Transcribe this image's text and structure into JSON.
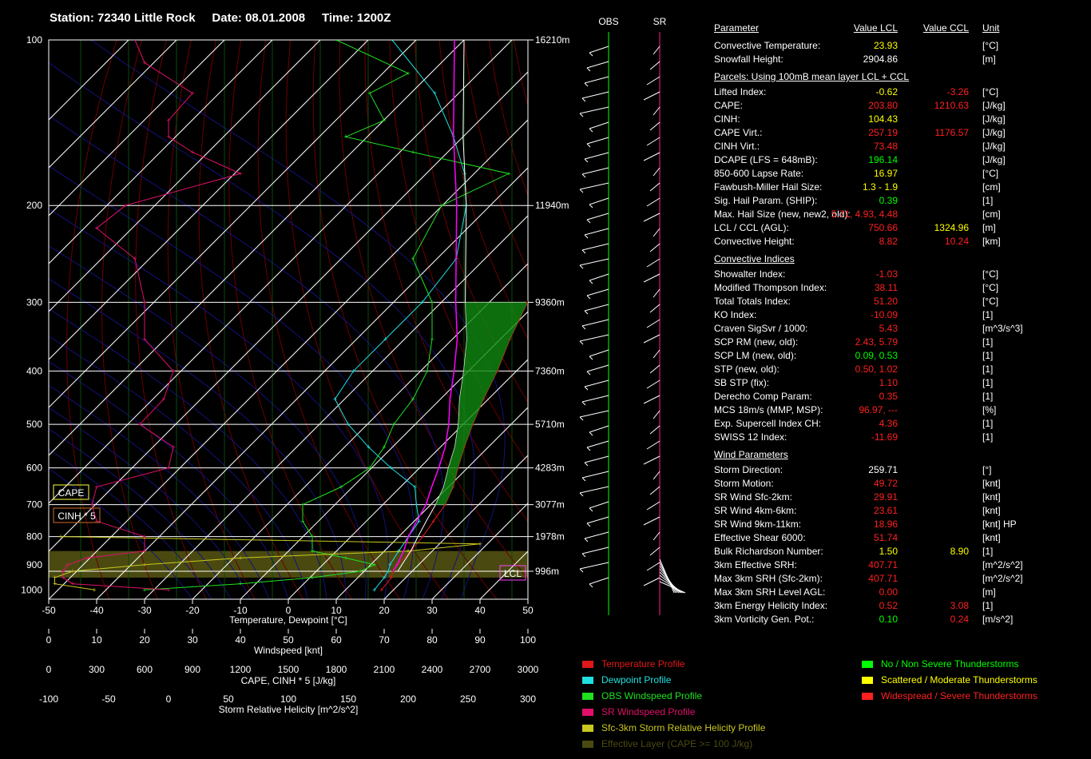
{
  "header": {
    "station": "Station: 72340 Little Rock",
    "date": "Date: 08.01.2008",
    "time": "Time: 1200Z"
  },
  "colors": {
    "temperature": "#e01818",
    "dewpoint": "#20e0e0",
    "obs_wind": "#20e020",
    "sr_wind": "#e0106a",
    "helicity": "#c8c820",
    "effective_layer": "#4a4a10",
    "parcel": "#ff00ff",
    "virtual": "#ffffff",
    "green_index": "#00ff00",
    "yellow_index": "#ffff00",
    "red_index": "#ff2020"
  },
  "chart_data": {
    "type": "skew-t",
    "x_axis": {
      "label": "Temperature, Dewpoint [°C]",
      "range": [
        -50,
        50
      ],
      "ticks": [
        "-50",
        "-40",
        "-30",
        "-20",
        "-10",
        "0",
        "10",
        "20",
        "30",
        "40",
        "50"
      ]
    },
    "y_axis": {
      "scale": "log-pressure",
      "range": [
        100,
        1050
      ],
      "ticks": [
        "100",
        "200",
        "300",
        "400",
        "500",
        "600",
        "700",
        "800",
        "900",
        "1000"
      ]
    },
    "height_labels": [
      {
        "p": 100,
        "label": "16210m"
      },
      {
        "p": 200,
        "label": "11940m"
      },
      {
        "p": 300,
        "label": "9360m"
      },
      {
        "p": 400,
        "label": "7360m"
      },
      {
        "p": 500,
        "label": "5710m"
      },
      {
        "p": 600,
        "label": "4283m"
      },
      {
        "p": 700,
        "label": "3077m"
      },
      {
        "p": 800,
        "label": "1978m"
      },
      {
        "p": 925,
        "label": "996m"
      }
    ],
    "windspeed_axis": {
      "label": "Windspeed [knt]",
      "ticks": [
        "0",
        "10",
        "20",
        "30",
        "40",
        "50",
        "60",
        "70",
        "80",
        "90",
        "100"
      ]
    },
    "cape_axis": {
      "label": "CAPE, CINH * 5 [J/kg]",
      "ticks": [
        "0",
        "300",
        "600",
        "900",
        "1200",
        "1500",
        "1800",
        "2100",
        "2400",
        "2700",
        "3000"
      ]
    },
    "helicity_axis": {
      "label": "Storm Relative Helicity [m^2/s^2]",
      "ticks": [
        "-100",
        "-50",
        "0",
        "50",
        "100",
        "150",
        "200",
        "250",
        "300"
      ]
    },
    "box_labels": {
      "cape": "CAPE",
      "cinh": "CINH * 5",
      "lcl": "LCL"
    },
    "temperature": [
      [
        1000,
        17.5
      ],
      [
        950,
        17
      ],
      [
        925,
        16
      ],
      [
        900,
        15.5
      ],
      [
        850,
        15.5
      ],
      [
        800,
        15
      ],
      [
        750,
        14
      ],
      [
        700,
        13
      ],
      [
        650,
        11
      ],
      [
        600,
        8
      ],
      [
        550,
        5
      ],
      [
        500,
        2
      ],
      [
        450,
        -1
      ],
      [
        400,
        -4
      ],
      [
        350,
        -8
      ],
      [
        300,
        -12
      ],
      [
        250,
        -17
      ],
      [
        200,
        -23
      ],
      [
        175,
        -28
      ],
      [
        150,
        -34
      ],
      [
        125,
        -41
      ],
      [
        100,
        -47
      ]
    ],
    "dewpoint": [
      [
        1000,
        16
      ],
      [
        950,
        15.5
      ],
      [
        925,
        15
      ],
      [
        900,
        14
      ],
      [
        850,
        13
      ],
      [
        800,
        12
      ],
      [
        750,
        11
      ],
      [
        700,
        7
      ],
      [
        650,
        3
      ],
      [
        600,
        -6
      ],
      [
        550,
        -15
      ],
      [
        500,
        -24
      ],
      [
        450,
        -32
      ],
      [
        400,
        -34
      ],
      [
        350,
        -34
      ],
      [
        300,
        -34
      ],
      [
        250,
        -36
      ],
      [
        200,
        -45
      ],
      [
        175,
        -52
      ],
      [
        150,
        -62
      ],
      [
        125,
        -75
      ],
      [
        100,
        -95
      ]
    ],
    "parcel": [
      [
        925,
        16
      ],
      [
        900,
        15.5
      ],
      [
        850,
        14
      ],
      [
        800,
        12
      ],
      [
        750,
        10.5
      ],
      [
        700,
        9
      ],
      [
        650,
        6.5
      ],
      [
        600,
        4
      ],
      [
        550,
        1
      ],
      [
        500,
        -3
      ],
      [
        450,
        -8
      ],
      [
        400,
        -13
      ],
      [
        350,
        -19
      ],
      [
        300,
        -27
      ],
      [
        250,
        -36
      ],
      [
        200,
        -47
      ],
      [
        150,
        -62
      ],
      [
        100,
        -82
      ]
    ],
    "virtual_parcel": [
      [
        925,
        17
      ],
      [
        900,
        16.5
      ],
      [
        850,
        15.5
      ],
      [
        800,
        14
      ],
      [
        750,
        12.5
      ],
      [
        700,
        11
      ],
      [
        650,
        9
      ],
      [
        600,
        6
      ],
      [
        550,
        3
      ],
      [
        500,
        -1
      ],
      [
        450,
        -6
      ],
      [
        400,
        -11
      ],
      [
        350,
        -17
      ],
      [
        300,
        -25
      ],
      [
        250,
        -34
      ],
      [
        200,
        -45
      ],
      [
        150,
        -60
      ],
      [
        100,
        -80
      ]
    ],
    "obs_wind": [
      [
        1000,
        20
      ],
      [
        975,
        40
      ],
      [
        950,
        55
      ],
      [
        925,
        65
      ],
      [
        900,
        68
      ],
      [
        875,
        62
      ],
      [
        850,
        55
      ],
      [
        800,
        55
      ],
      [
        750,
        53
      ],
      [
        700,
        53
      ],
      [
        650,
        61
      ],
      [
        600,
        67
      ],
      [
        550,
        70
      ],
      [
        500,
        72
      ],
      [
        450,
        76
      ],
      [
        400,
        79
      ],
      [
        350,
        80
      ],
      [
        300,
        80
      ],
      [
        250,
        76
      ],
      [
        200,
        82
      ],
      [
        175,
        96
      ],
      [
        160,
        76
      ],
      [
        150,
        62
      ],
      [
        140,
        70
      ],
      [
        125,
        67
      ],
      [
        115,
        75
      ],
      [
        100,
        60
      ]
    ],
    "sr_wind": [
      [
        1000,
        25
      ],
      [
        975,
        5
      ],
      [
        950,
        3
      ],
      [
        925,
        3
      ],
      [
        900,
        4
      ],
      [
        875,
        8
      ],
      [
        850,
        20
      ],
      [
        800,
        20
      ],
      [
        750,
        10
      ],
      [
        700,
        9
      ],
      [
        650,
        10
      ],
      [
        600,
        25
      ],
      [
        550,
        26
      ],
      [
        500,
        19
      ],
      [
        450,
        24
      ],
      [
        400,
        26
      ],
      [
        350,
        20
      ],
      [
        300,
        20
      ],
      [
        250,
        18
      ],
      [
        220,
        10
      ],
      [
        200,
        16
      ],
      [
        175,
        40
      ],
      [
        160,
        30
      ],
      [
        150,
        25
      ],
      [
        140,
        25
      ],
      [
        125,
        30
      ],
      [
        110,
        20
      ],
      [
        100,
        18
      ]
    ],
    "helicity": [
      [
        1000,
        -62
      ],
      [
        975,
        -95
      ],
      [
        950,
        -95
      ],
      [
        925,
        -80
      ],
      [
        900,
        -20
      ],
      [
        875,
        60
      ],
      [
        850,
        200
      ],
      [
        825,
        260
      ],
      [
        800,
        -90
      ]
    ]
  },
  "right_panel": {
    "headers": {
      "parameter": "Parameter",
      "value_lcl": "Value LCL",
      "value_ccl": "Value CCL",
      "unit": "Unit"
    },
    "sections": [
      {
        "rows": [
          {
            "label": "Convective Temperature:",
            "lcl": "23.93",
            "lcl_color": "yellow",
            "ccl": "",
            "unit": "[°C]"
          },
          {
            "label": "Snowfall Height:",
            "lcl": "2904.86",
            "lcl_color": "white",
            "ccl": "",
            "unit": "[m]"
          }
        ]
      },
      {
        "title": "Parcels: Using 100mB mean layer LCL + CCL",
        "rows": [
          {
            "label": "Lifted Index:",
            "lcl": "-0.62",
            "lcl_color": "yellow",
            "ccl": "-3.26",
            "ccl_color": "red",
            "unit": "[°C]"
          },
          {
            "label": "CAPE:",
            "lcl": "203.80",
            "lcl_color": "red",
            "ccl": "1210.63",
            "ccl_color": "red",
            "unit": "[J/kg]"
          },
          {
            "label": "CINH:",
            "lcl": "104.43",
            "lcl_color": "yellow",
            "ccl": "",
            "unit": "[J/kg]"
          },
          {
            "label": "CAPE Virt.:",
            "lcl": "257.19",
            "lcl_color": "red",
            "ccl": "1176.57",
            "ccl_color": "red",
            "unit": "[J/kg]"
          },
          {
            "label": "CINH Virt.:",
            "lcl": "73.48",
            "lcl_color": "red",
            "ccl": "",
            "unit": "[J/kg]"
          },
          {
            "label": "DCAPE (LFS = 648mB):",
            "lcl": "196.14",
            "lcl_color": "green",
            "ccl": "",
            "unit": "[J/kg]"
          },
          {
            "label": "850-600 Lapse Rate:",
            "lcl": "16.97",
            "lcl_color": "yellow",
            "ccl": "",
            "unit": "[°C]"
          },
          {
            "label": "Fawbush-Miller Hail Size:",
            "lcl": "1.3 - 1.9",
            "lcl_color": "yellow",
            "ccl": "",
            "unit": "[cm]"
          },
          {
            "label": "Sig. Hail Param. (SHIP):",
            "lcl": "0.39",
            "lcl_color": "green",
            "ccl": "",
            "unit": "[1]"
          },
          {
            "label": "Max. Hail Size (new, new2, old):",
            "lcl": "5.71,  4.93,  4.48",
            "lcl_color": "red",
            "ccl": "",
            "unit": "[cm]"
          },
          {
            "label": "LCL / CCL (AGL):",
            "lcl": "750.66",
            "lcl_color": "red",
            "ccl": "1324.96",
            "ccl_color": "yellow",
            "unit": "[m]"
          },
          {
            "label": "Convective Height:",
            "lcl": "8.82",
            "lcl_color": "red",
            "ccl": "10.24",
            "ccl_color": "red",
            "unit": "[km]"
          }
        ]
      },
      {
        "title": "Convective Indices",
        "rows": [
          {
            "label": "Showalter Index:",
            "lcl": "-1.03",
            "lcl_color": "red",
            "ccl": "",
            "unit": "[°C]"
          },
          {
            "label": "Modified Thompson Index:",
            "lcl": "38.11",
            "lcl_color": "red",
            "ccl": "",
            "unit": "[°C]"
          },
          {
            "label": "Total Totals Index:",
            "lcl": "51.20",
            "lcl_color": "red",
            "ccl": "",
            "unit": "[°C]"
          },
          {
            "label": "KO Index:",
            "lcl": "-10.09",
            "lcl_color": "red",
            "ccl": "",
            "unit": "[1]"
          },
          {
            "label": "Craven SigSvr / 1000:",
            "lcl": "5.43",
            "lcl_color": "red",
            "ccl": "",
            "unit": "[m^3/s^3]"
          },
          {
            "label": "SCP RM (new, old):",
            "lcl": "2.43,  5.79",
            "lcl_color": "red",
            "ccl": "",
            "unit": "[1]"
          },
          {
            "label": "SCP LM (new, old):",
            "lcl": "0.09,  0.53",
            "lcl_color": "green",
            "ccl": "",
            "unit": "[1]"
          },
          {
            "label": "STP (new, old):",
            "lcl": "0.50,  1.02",
            "lcl_color": "red",
            "ccl": "",
            "unit": "[1]"
          },
          {
            "label": "SB STP (fix):",
            "lcl": "1.10",
            "lcl_color": "red",
            "ccl": "",
            "unit": "[1]"
          },
          {
            "label": "Derecho Comp Param:",
            "lcl": "0.35",
            "lcl_color": "red",
            "ccl": "",
            "unit": "[1]"
          },
          {
            "label": "MCS 18m/s (MMP, MSP):",
            "lcl": "96.97,  ---",
            "lcl_color": "red",
            "ccl": "",
            "unit": "[%]"
          },
          {
            "label": "Exp. Supercell Index CH:",
            "lcl": "4.36",
            "lcl_color": "red",
            "ccl": "",
            "unit": "[1]"
          },
          {
            "label": "SWISS 12 Index:",
            "lcl": "-11.69",
            "lcl_color": "red",
            "ccl": "",
            "unit": "[1]"
          }
        ]
      },
      {
        "title": "Wind Parameters",
        "rows": [
          {
            "label": "Storm Direction:",
            "lcl": "259.71",
            "lcl_color": "white",
            "ccl": "",
            "unit": "[°]"
          },
          {
            "label": "Storm Motion:",
            "lcl": "49.72",
            "lcl_color": "red",
            "ccl": "",
            "unit": "[knt]"
          },
          {
            "label": "SR Wind Sfc-2km:",
            "lcl": "29.91",
            "lcl_color": "red",
            "ccl": "",
            "unit": "[knt]"
          },
          {
            "label": "SR Wind 4km-6km:",
            "lcl": "23.61",
            "lcl_color": "red",
            "ccl": "",
            "unit": "[knt]"
          },
          {
            "label": "SR Wind 9km-11km:",
            "lcl": "18.96",
            "lcl_color": "red",
            "ccl": "",
            "unit": "[knt] HP"
          },
          {
            "label": "Effective Shear 6000:",
            "lcl": "51.74",
            "lcl_color": "red",
            "ccl": "",
            "unit": "[knt]"
          },
          {
            "label": "Bulk Richardson Number:",
            "lcl": "1.50",
            "lcl_color": "yellow",
            "ccl": "8.90",
            "ccl_color": "yellow",
            "unit": "[1]"
          },
          {
            "label": "3km Effective SRH:",
            "lcl": "407.71",
            "lcl_color": "red",
            "ccl": "",
            "unit": "[m^2/s^2]"
          },
          {
            "label": "Max 3km SRH (Sfc-2km):",
            "lcl": "407.71",
            "lcl_color": "red",
            "ccl": "",
            "unit": "[m^2/s^2]"
          },
          {
            "label": "Max 3km SRH Level AGL:",
            "lcl": "0.00",
            "lcl_color": "red",
            "ccl": "",
            "unit": "[m]"
          },
          {
            "label": "3km Energy Helicity Index:",
            "lcl": "0.52",
            "lcl_color": "red",
            "ccl": "3.08",
            "ccl_color": "red",
            "unit": "[1]"
          },
          {
            "label": "3km Vorticity Gen. Pot.:",
            "lcl": "0.10",
            "lcl_color": "green",
            "ccl": "0.24",
            "ccl_color": "red",
            "unit": "[m/s^2]"
          }
        ]
      }
    ]
  },
  "wind_columns": {
    "obs": "OBS",
    "sr": "SR"
  },
  "legend_left": [
    {
      "label": "Temperature Profile",
      "color": "#e01818"
    },
    {
      "label": "Dewpoint Profile",
      "color": "#20e0e0"
    },
    {
      "label": "OBS Windspeed Profile",
      "color": "#20e020"
    },
    {
      "label": "SR Windspeed Profile",
      "color": "#e0106a"
    },
    {
      "label": "Sfc-3km Storm Relative Helicity Profile",
      "color": "#c8c820"
    },
    {
      "label": "Effective Layer (CAPE >= 100 J/kg)",
      "color": "#4a4a10"
    }
  ],
  "legend_right": [
    {
      "label": "No / Non Severe Thunderstorms",
      "color": "#00ff00"
    },
    {
      "label": "Scattered / Moderate Thunderstorms",
      "color": "#ffff00"
    },
    {
      "label": "Widespread / Severe Thunderstorms",
      "color": "#ff2020"
    }
  ]
}
